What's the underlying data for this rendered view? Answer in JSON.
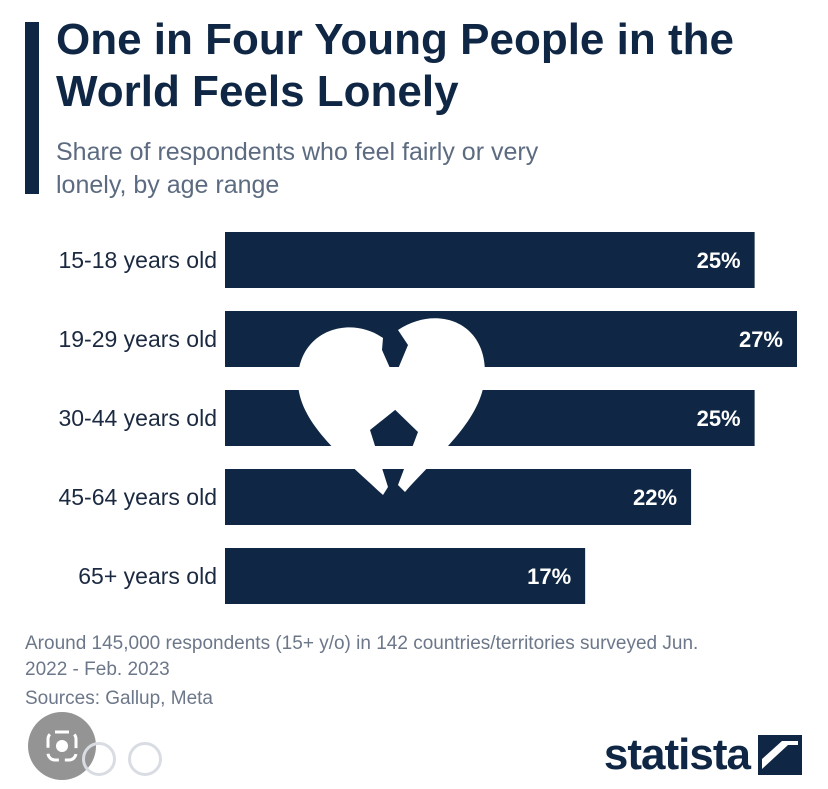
{
  "title": "One in Four Young People in the World Feels Lonely",
  "subtitle": "Share of respondents who feel fairly or very lonely, by age range",
  "footnote": "Around 145,000 respondents (15+ y/o) in 142 countries/territories surveyed Jun. 2022 - Feb. 2023",
  "sources": "Sources: Gallup, Meta",
  "brand": "statista",
  "colors": {
    "bar": "#0f2744",
    "label": "#1b2a41",
    "muted": "#6c7789",
    "heart": "#ffffff"
  },
  "icons": {
    "center": "broken-heart-icon",
    "brand": "statista-logo-icon",
    "overlay": "lens-icon"
  },
  "chart_data": {
    "type": "bar",
    "orientation": "horizontal",
    "categories": [
      "15-18 years old",
      "19-29 years old",
      "30-44 years old",
      "45-64 years old",
      "65+ years old"
    ],
    "values": [
      25,
      27,
      25,
      22,
      17
    ],
    "value_labels": [
      "25%",
      "27%",
      "25%",
      "22%",
      "17%"
    ],
    "unit": "%",
    "xlim": [
      0,
      27
    ],
    "grid": false
  }
}
